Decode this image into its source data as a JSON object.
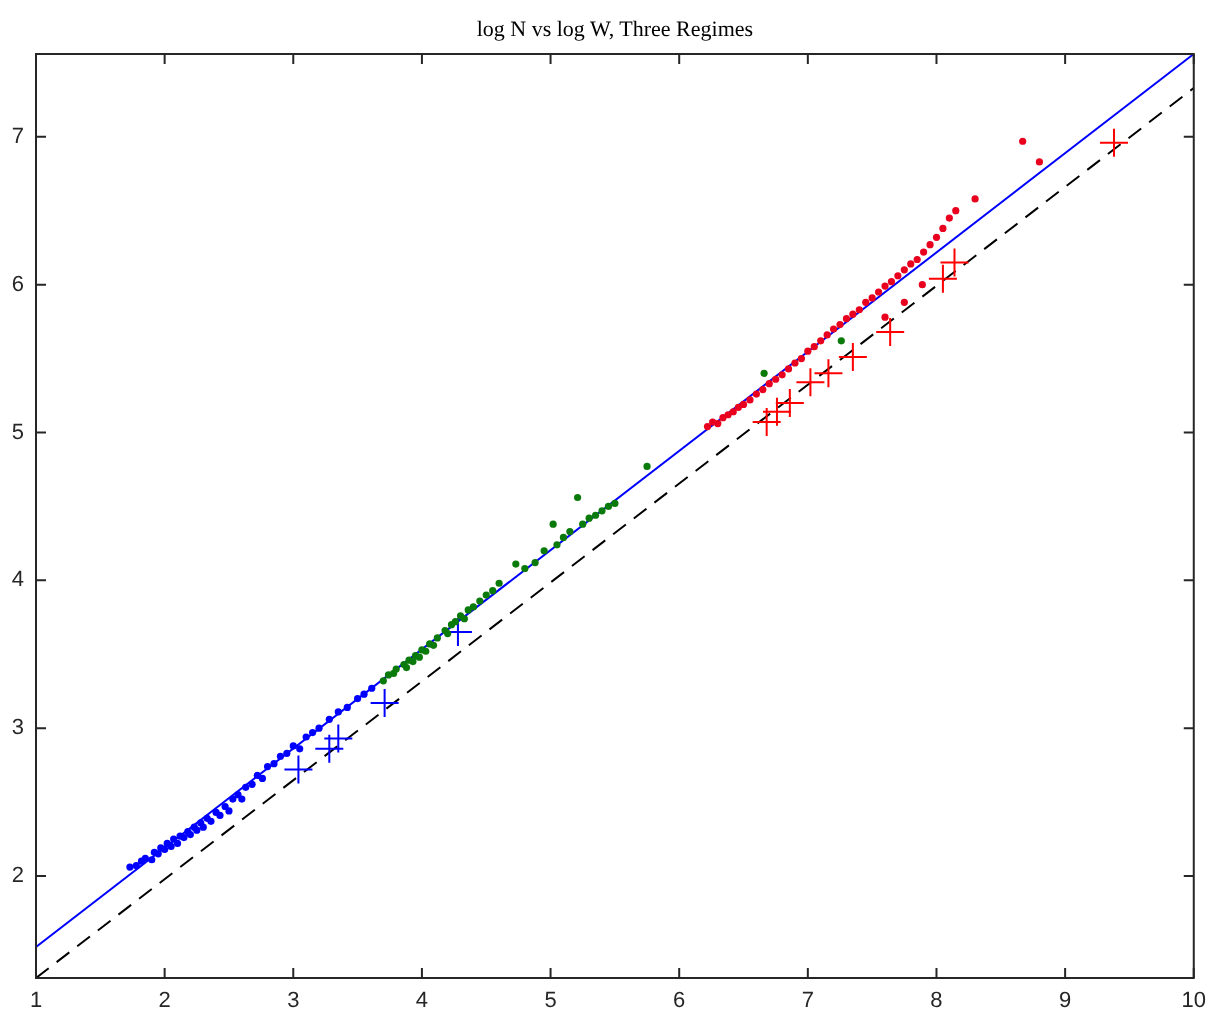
{
  "chart_data": {
    "type": "scatter",
    "title": "log N vs log W, Three Regimes",
    "xlim": [
      1,
      10
    ],
    "ylim": [
      1.31,
      7.56
    ],
    "xticks": [
      1,
      2,
      3,
      4,
      5,
      6,
      7,
      8,
      9,
      10
    ],
    "yticks": [
      2,
      3,
      4,
      5,
      6,
      7
    ],
    "grid": false,
    "legend": false,
    "marker": "circle",
    "series": [
      {
        "color": "#0000ff",
        "x": [
          1.73,
          1.78,
          1.82,
          1.85,
          1.9,
          1.92,
          1.95,
          1.97,
          2.0,
          2.02,
          2.05,
          2.07,
          2.1,
          2.12,
          2.15,
          2.18,
          2.2,
          2.23,
          2.25,
          2.28,
          2.3,
          2.33,
          2.36,
          2.4,
          2.43,
          2.47,
          2.5,
          2.53,
          2.57,
          2.6,
          2.63,
          2.68,
          2.72,
          2.76,
          2.8,
          2.85,
          2.9,
          2.95,
          3.0,
          3.05,
          3.1,
          3.15,
          3.2,
          3.28,
          3.35,
          3.42,
          3.5,
          3.55,
          3.61
        ],
        "values": [
          2.06,
          2.07,
          2.1,
          2.12,
          2.11,
          2.16,
          2.15,
          2.19,
          2.18,
          2.22,
          2.2,
          2.25,
          2.22,
          2.27,
          2.26,
          2.3,
          2.28,
          2.33,
          2.31,
          2.36,
          2.33,
          2.39,
          2.37,
          2.43,
          2.41,
          2.47,
          2.44,
          2.52,
          2.55,
          2.52,
          2.6,
          2.62,
          2.68,
          2.66,
          2.74,
          2.76,
          2.81,
          2.83,
          2.88,
          2.86,
          2.94,
          2.97,
          3.0,
          3.06,
          3.11,
          3.14,
          3.2,
          3.23,
          3.27
        ]
      },
      {
        "color": "#0a7a0a",
        "x": [
          3.7,
          3.74,
          3.78,
          3.8,
          3.86,
          3.88,
          3.9,
          3.93,
          3.95,
          3.98,
          4.0,
          4.03,
          4.06,
          4.09,
          4.12,
          4.18,
          4.2,
          4.23,
          4.26,
          4.3,
          4.33,
          4.36,
          4.4,
          4.45,
          4.5,
          4.55,
          4.6,
          4.73,
          4.8,
          4.88,
          4.95,
          5.02,
          5.05,
          5.1,
          5.15,
          5.21,
          5.25,
          5.3,
          5.35,
          5.4,
          5.45,
          5.5,
          5.75,
          6.66,
          7.26
        ],
        "values": [
          3.32,
          3.36,
          3.37,
          3.4,
          3.43,
          3.41,
          3.46,
          3.45,
          3.49,
          3.48,
          3.53,
          3.52,
          3.57,
          3.56,
          3.61,
          3.66,
          3.64,
          3.7,
          3.72,
          3.76,
          3.74,
          3.8,
          3.82,
          3.86,
          3.9,
          3.93,
          3.98,
          4.11,
          4.08,
          4.12,
          4.2,
          4.38,
          4.24,
          4.29,
          4.33,
          4.56,
          4.38,
          4.42,
          4.44,
          4.47,
          4.5,
          4.52,
          4.77,
          5.4,
          5.62
        ]
      },
      {
        "color": "#e8001e",
        "x": [
          6.22,
          6.26,
          6.3,
          6.34,
          6.38,
          6.42,
          6.46,
          6.5,
          6.55,
          6.6,
          6.65,
          6.7,
          6.75,
          6.8,
          6.85,
          6.9,
          6.95,
          7.0,
          7.05,
          7.1,
          7.15,
          7.2,
          7.25,
          7.3,
          7.35,
          7.4,
          7.45,
          7.5,
          7.55,
          7.6,
          7.65,
          7.7,
          7.75,
          7.8,
          7.85,
          7.9,
          7.95,
          8.0,
          8.05,
          8.1,
          8.15,
          8.3,
          7.6,
          7.75,
          7.89,
          8.67,
          8.8
        ],
        "values": [
          5.04,
          5.07,
          5.06,
          5.1,
          5.12,
          5.14,
          5.17,
          5.19,
          5.22,
          5.26,
          5.29,
          5.33,
          5.36,
          5.39,
          5.43,
          5.47,
          5.5,
          5.55,
          5.58,
          5.62,
          5.66,
          5.7,
          5.73,
          5.77,
          5.8,
          5.83,
          5.88,
          5.91,
          5.95,
          5.99,
          6.02,
          6.06,
          6.1,
          6.14,
          6.17,
          6.22,
          6.27,
          6.32,
          6.38,
          6.45,
          6.5,
          6.58,
          5.78,
          5.88,
          6.0,
          6.97,
          6.83
        ]
      },
      {
        "color": "#0000ff",
        "marker": "cross",
        "x": [
          3.04,
          3.28,
          3.35,
          3.71,
          4.28
        ],
        "values": [
          2.72,
          2.86,
          2.93,
          3.17,
          3.65
        ]
      },
      {
        "color": "#ff0000",
        "marker": "cross",
        "x": [
          6.68,
          6.76,
          6.86,
          7.02,
          7.16,
          7.35,
          7.64,
          8.05,
          8.14
        ],
        "values": [
          5.07,
          5.14,
          5.2,
          5.34,
          5.4,
          5.51,
          5.68,
          6.04,
          6.15
        ]
      },
      {
        "color": "#ff0000",
        "marker": "cross",
        "x": [
          9.38
        ],
        "values": [
          6.96
        ]
      },
      {
        "type": "line",
        "color": "#0000ff",
        "marker": "none",
        "x": [
          1,
          10
        ],
        "values": [
          1.52,
          7.56
        ]
      },
      {
        "type": "line",
        "color": "#000000",
        "marker": "none",
        "line_style": "dashed",
        "x": [
          1,
          10
        ],
        "values": [
          1.31,
          7.33
        ]
      }
    ]
  }
}
